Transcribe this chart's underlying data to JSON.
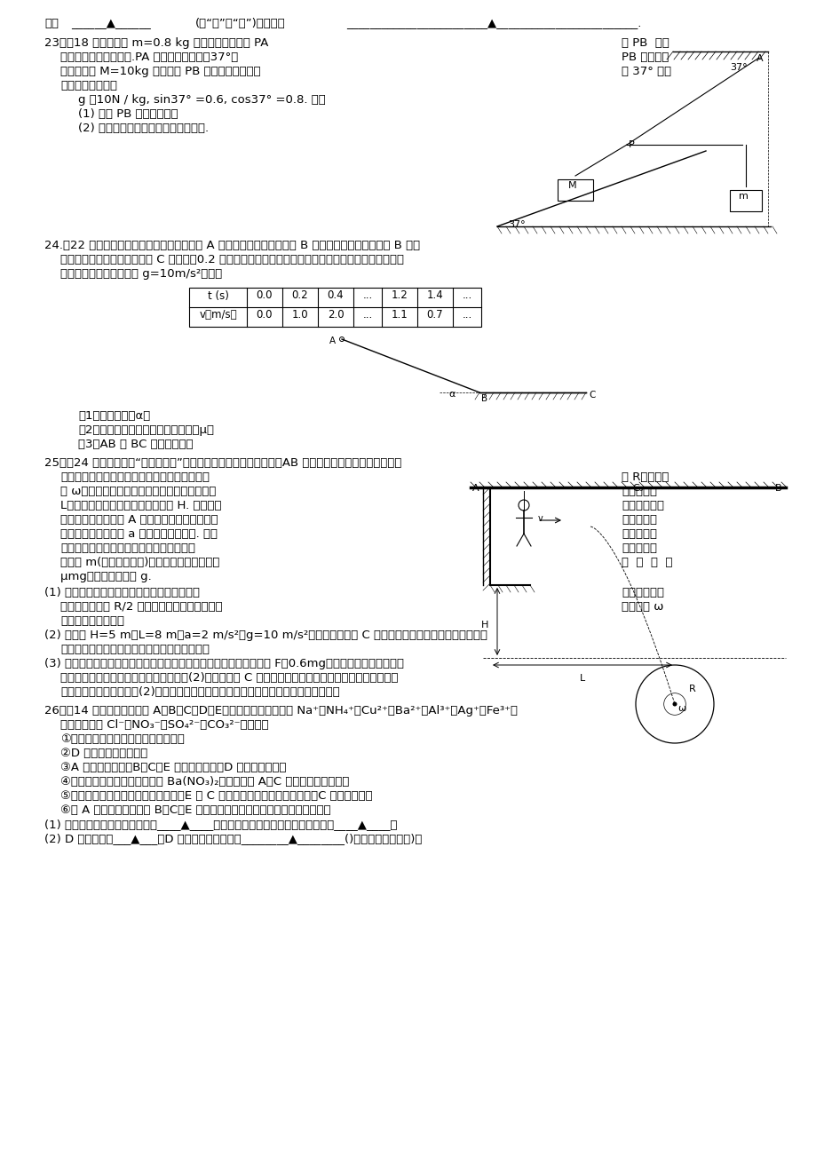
{
  "bg_color": "#ffffff",
  "text_color": "#000000",
  "fs": 9.5,
  "fs_s": 8.5,
  "lh": 16,
  "answer_line_1": "答：",
  "answer_blank1": "______▲______",
  "answer_fill": "(填“是”或“否”)；理由是",
  "answer_blank2": "________________________▲________________________.",
  "q23_l1a": "23．（18 分）质量为 m=0.8 kg 的码码悬挂在轻绳 PA",
  "q23_l1b": "和 PB  的结",
  "q23_l2a": "点上并处于静止状态。.PA 与竖直方向的夹角37°，",
  "q23_l2b": "PB 沟水平方",
  "q23_l3a": "向。质量为 M=10kg 的木块与 PB 相连，静止于倒角",
  "q23_l3b": "为 37° 的斜",
  "q23_l4": "面上，如图所示。",
  "q23_l5": "g 取10N / kg, sin37° =0.6, cos37° =0.8. 求：",
  "q23_l6": "(1) 轻绳 PB 拉力的大小；",
  "q23_l7": "(2) 木块所受斜面的摩擦力和弹力大小.",
  "q24_l1": "24.（22 分）如图所示，物体从光滑斜面上的 A 点由静止开始下滑，经过 B 点后进入水平面（设经过 B 点前",
  "q24_l2": "后速度大小不变），最后停在 C 点。每隔0.2 秒钟通过速度传感器测量物体的瞬时速度，下表给出了部分",
  "q24_l3": "测量数据。（重力加速度 g=10m/s²）求：",
  "table_t": [
    "t (s)",
    "0.0",
    "0.2",
    "0.4",
    "...",
    "1.2",
    "1.4",
    "..."
  ],
  "table_v": [
    "v（m/s）",
    "0.0",
    "1.0",
    "2.0",
    "...",
    "1.1",
    "0.7",
    "..."
  ],
  "q24_sub1": "（1）斜面的倒角α；",
  "q24_sub2": "（2）物体与水平面之间的动摩擦因数μ；",
  "q24_sub3": "（3）AB 与 BC 的长度之比。",
  "q25_l1": "25．（24 分）某电视台“快乐向前冲”节目中的场地设施如题图所示，AB 为水平直轨道，上面安装有电动",
  "q25_l2a": "悬挂器，可以载人运动，水面上漂浮着一个半径",
  "q25_l2b": "为 R，角速度",
  "q25_l3a": "为 ω，铺有海绵垫的转盘，转盘的轴心离平台的",
  "q25_l3b": "水平距离为",
  "q25_l4a": "L，平台边缘与转盘平面的高度差为 H. 选手抓住",
  "q25_l4b": "悬挂器，可以",
  "q25_l5a": "在电动机带动下，从 A 点下方的平台边缘处汿水",
  "q25_l5b": "平方向做初",
  "q25_l6a": "速度为零，加速度为 a 的匀加速直线运动. 选手",
  "q25_l6b": "必须作好判",
  "q25_l7a": "断，在合适的位置释放，才能顺利落在转盘",
  "q25_l7b": "上，设人的",
  "q25_l8a": "质量为 m(不计身高大小)，人与转盘间的最大静",
  "q25_l8b": "摩  擦  力  为",
  "q25_l9": "μmg，重力加速度为 g.",
  "q25_s1a": "(1) 假设选手落到转盘上瞬间相对转盘速度立即",
  "q25_s1ab": "变为零，为保",
  "q25_s1b": "证他落在距圆心 R/2 以内不会被璎出转盘，转盘",
  "q25_s1bb": "的角速度 ω",
  "q25_s1c": "应限制在什么范围？",
  "q25_s2": "(2) 若已知 H=5 m，L=8 m，a=2 m/s²，g=10 m/s²，且选手从某处 C 点释放能恰好落到转盘的圆心上，则",
  "q25_s2b": "他是从平台出发后经过多长时间释放悬挂器的？",
  "q25_s3": "(3) 若电动悬挂器开动后，针对不同选手的动力与该选手重力关系皆为 F＝0.6mg，悬挂器在轨道上运动时",
  "q25_s3b": "存在恒定的摩擦阻力，选手在运动到上面(2)中所述位置 C 点时，因选手恐惧没有释放悬挂器，但立即关",
  "q25_s3c": "闭了它的电动机，则按照(2)中数据计算悬挂器载着选手还能继续向右滑行多远的距离？",
  "q26_l1": "26．（14 分）常见的五种盐 A、B、C、D、E，它们的阳离子可能是 Na⁺、NH₄⁺、Cu²⁺、Ba²⁺、Al³⁺、Ag⁺、Fe³⁺，",
  "q26_l2": "阴离子可能是 Cl⁻、NO₃⁻、SO₄²⁻、CO₃²⁻。已知：",
  "q26_c1": "①五种盐均溶于水，水溶液均为无色；",
  "q26_c2": "②D 的焌色反应呈黄色；",
  "q26_c3": "③A 的溶液呈中性，B、C、E 的溶液呈酸性，D 的溶液呈碱性；",
  "q26_c4": "④若在这五种盐溶液中分别加入 Ba(NO₃)₂溶液，只有 A、C 的溶液不产生沉淠；",
  "q26_c5": "⑤若在这五种盐溶液中分别加入氨水，E 和 C 溶液中生成沉淠，继续加氨水，C 中沉淠消失；",
  "q26_c6": "⑥把 A 的溶液分别加入到 B、C、E 的溶液中，均能生成不溶于稀硫酸的沉淠。",
  "q26_sub1": "(1) 五种盐中一定没有的阳离子是____▲____，所含阴离子相同的两种盐的化学式是____▲____。",
  "q26_sub2": "(2) D 的化学式为___▲___，D 溶液显碱性的原因是________▲________()用离子方程式表示)。"
}
